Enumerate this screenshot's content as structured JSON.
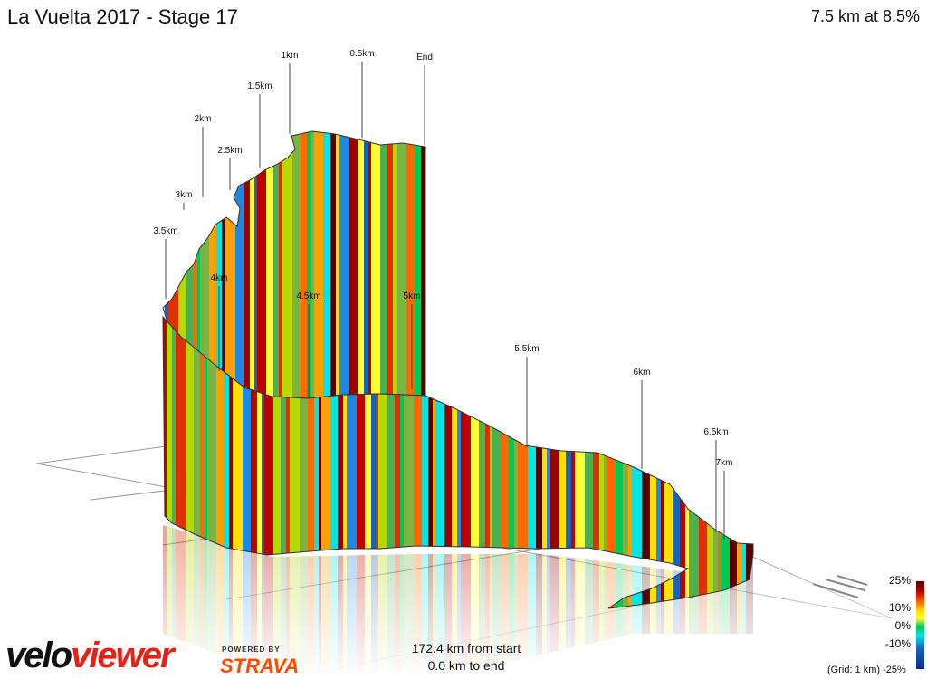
{
  "header": {
    "title": "La Vuelta 2017 - Stage 17",
    "climb_summary": "7.5 km at 8.5%"
  },
  "footer": {
    "from_start": "172.4 km from start",
    "to_end": "0.0 km to end",
    "grid_note": "(Grid: 1 km)"
  },
  "branding": {
    "logo_part1": "velo",
    "logo_part2": "viewer",
    "powered_by": "POWERED BY",
    "strava": "STRAVA"
  },
  "legend": {
    "ticks": [
      "25%",
      "10%",
      "0%",
      "-10%",
      "-25%"
    ],
    "colors": [
      "#5a0000",
      "#c00000",
      "#ff6a00",
      "#ffe100",
      "#00c853",
      "#00e5e5",
      "#1565c0"
    ]
  },
  "chart_data": {
    "type": "area",
    "distance_markers": [
      "End",
      "0.5km",
      "1km",
      "1.5km",
      "2km",
      "2.5km",
      "3km",
      "3.5km",
      "4km",
      "4.5km",
      "5km",
      "5.5km",
      "6km",
      "6.5km",
      "7km"
    ],
    "gradient_colors": [
      "#5a0000",
      "#9b0000",
      "#c00000",
      "#e03000",
      "#ff6a00",
      "#ffa000",
      "#ffe100",
      "#ffff33",
      "#b5d800",
      "#00c853",
      "#00e5e5",
      "#1e88e5",
      "#1565c0",
      "#4caf50",
      "#7cb342"
    ],
    "legend_range": [
      -25,
      25
    ]
  }
}
